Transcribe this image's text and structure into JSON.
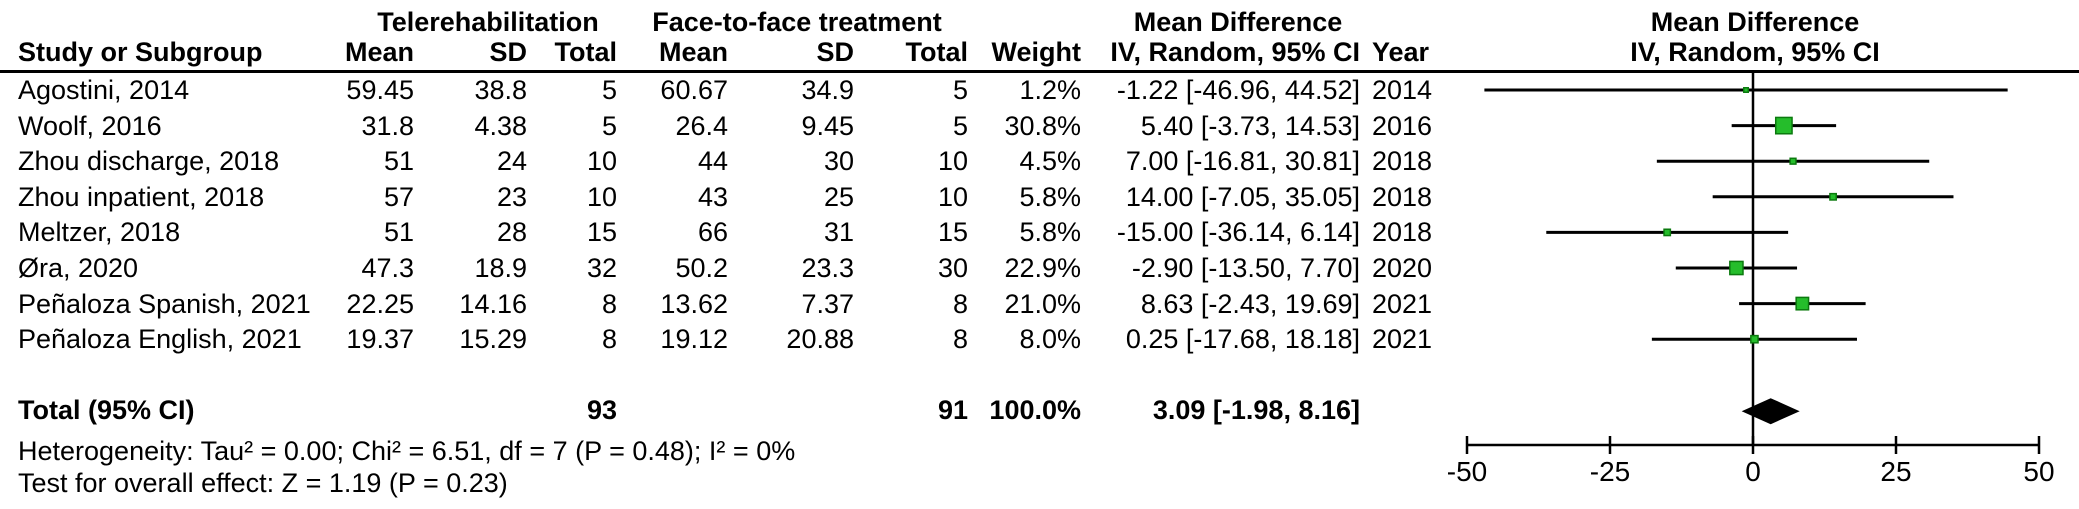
{
  "header": {
    "group_tele": "Telerehabilitation",
    "group_f2f": "Face-to-face treatment",
    "group_md_left": "Mean Difference",
    "group_md_right": "Mean Difference",
    "col_study": "Study or Subgroup",
    "col_mean_tele": "Mean",
    "col_sd_tele": "SD",
    "col_total_tele": "Total",
    "col_mean_f2f": "Mean",
    "col_sd_f2f": "SD",
    "col_total_f2f": "Total",
    "col_weight": "Weight",
    "col_ci_left": "IV, Random, 95% CI",
    "col_year": "Year",
    "col_ci_right": "IV, Random, 95% CI"
  },
  "rows": [
    {
      "study": "Agostini, 2014",
      "t_mean": "59.45",
      "t_sd": "38.8",
      "t_total": "5",
      "f_mean": "60.67",
      "f_sd": "34.9",
      "f_total": "5",
      "weight": "1.2%",
      "ci": "-1.22 [-46.96, 44.52]",
      "year": "2014"
    },
    {
      "study": "Woolf, 2016",
      "t_mean": "31.8",
      "t_sd": "4.38",
      "t_total": "5",
      "f_mean": "26.4",
      "f_sd": "9.45",
      "f_total": "5",
      "weight": "30.8%",
      "ci": "5.40 [-3.73, 14.53]",
      "year": "2016"
    },
    {
      "study": "Zhou discharge, 2018",
      "t_mean": "51",
      "t_sd": "24",
      "t_total": "10",
      "f_mean": "44",
      "f_sd": "30",
      "f_total": "10",
      "weight": "4.5%",
      "ci": "7.00 [-16.81, 30.81]",
      "year": "2018"
    },
    {
      "study": "Zhou inpatient, 2018",
      "t_mean": "57",
      "t_sd": "23",
      "t_total": "10",
      "f_mean": "43",
      "f_sd": "25",
      "f_total": "10",
      "weight": "5.8%",
      "ci": "14.00 [-7.05, 35.05]",
      "year": "2018"
    },
    {
      "study": "Meltzer, 2018",
      "t_mean": "51",
      "t_sd": "28",
      "t_total": "15",
      "f_mean": "66",
      "f_sd": "31",
      "f_total": "15",
      "weight": "5.8%",
      "ci": "-15.00 [-36.14, 6.14]",
      "year": "2018"
    },
    {
      "study": "Øra, 2020",
      "t_mean": "47.3",
      "t_sd": "18.9",
      "t_total": "32",
      "f_mean": "50.2",
      "f_sd": "23.3",
      "f_total": "30",
      "weight": "22.9%",
      "ci": "-2.90 [-13.50, 7.70]",
      "year": "2020"
    },
    {
      "study": "Peñaloza Spanish, 2021",
      "t_mean": "22.25",
      "t_sd": "14.16",
      "t_total": "8",
      "f_mean": "13.62",
      "f_sd": "7.37",
      "f_total": "8",
      "weight": "21.0%",
      "ci": "8.63 [-2.43, 19.69]",
      "year": "2021"
    },
    {
      "study": "Peñaloza English, 2021",
      "t_mean": "19.37",
      "t_sd": "15.29",
      "t_total": "8",
      "f_mean": "19.12",
      "f_sd": "20.88",
      "f_total": "8",
      "weight": "8.0%",
      "ci": "0.25 [-17.68, 18.18]",
      "year": "2021"
    }
  ],
  "total": {
    "label": "Total (95% CI)",
    "t_total": "93",
    "f_total": "91",
    "weight": "100.0%",
    "ci": "3.09 [-1.98, 8.16]"
  },
  "footer": {
    "heterogeneity": "Heterogeneity: Tau² = 0.00; Chi² = 6.51, df = 7 (P = 0.48); I² = 0%",
    "overall_effect": "Test for overall effect: Z = 1.19 (P = 0.23)"
  },
  "chart_data": {
    "type": "forest",
    "title": "Mean Difference",
    "subtitle": "IV, Random, 95% CI",
    "effect_measure": "Mean Difference, IV, Random, 95% CI",
    "xlim": [
      -50,
      50
    ],
    "ticks": [
      -50,
      -25,
      0,
      25,
      50
    ],
    "tick_labels": [
      "-50",
      "-25",
      "0",
      "25",
      "50"
    ],
    "zero_line": 0,
    "marker_fill": "#25bd2b",
    "marker_border": "#0b7a0e",
    "line_color": "#000000",
    "diamond_color": "#000000",
    "studies": [
      {
        "name": "Agostini, 2014",
        "md": -1.22,
        "lo": -46.96,
        "hi": 44.52,
        "weight": 1.2,
        "year": 2014
      },
      {
        "name": "Woolf, 2016",
        "md": 5.4,
        "lo": -3.73,
        "hi": 14.53,
        "weight": 30.8,
        "year": 2016
      },
      {
        "name": "Zhou discharge, 2018",
        "md": 7.0,
        "lo": -16.81,
        "hi": 30.81,
        "weight": 4.5,
        "year": 2018
      },
      {
        "name": "Zhou inpatient, 2018",
        "md": 14.0,
        "lo": -7.05,
        "hi": 35.05,
        "weight": 5.8,
        "year": 2018
      },
      {
        "name": "Meltzer, 2018",
        "md": -15.0,
        "lo": -36.14,
        "hi": 6.14,
        "weight": 5.8,
        "year": 2018
      },
      {
        "name": "Øra, 2020",
        "md": -2.9,
        "lo": -13.5,
        "hi": 7.7,
        "weight": 22.9,
        "year": 2020
      },
      {
        "name": "Peñaloza Spanish, 2021",
        "md": 8.63,
        "lo": -2.43,
        "hi": 19.69,
        "weight": 21.0,
        "year": 2021
      },
      {
        "name": "Peñaloza English, 2021",
        "md": 0.25,
        "lo": -17.68,
        "hi": 18.18,
        "weight": 8.0,
        "year": 2021
      }
    ],
    "total": {
      "md": 3.09,
      "lo": -1.98,
      "hi": 8.16,
      "weight": 100.0
    },
    "heterogeneity": {
      "tau2": 0.0,
      "chi2": 6.51,
      "df": 7,
      "p": 0.48,
      "i2_pct": 0
    },
    "overall_effect": {
      "z": 1.19,
      "p": 0.23
    }
  }
}
